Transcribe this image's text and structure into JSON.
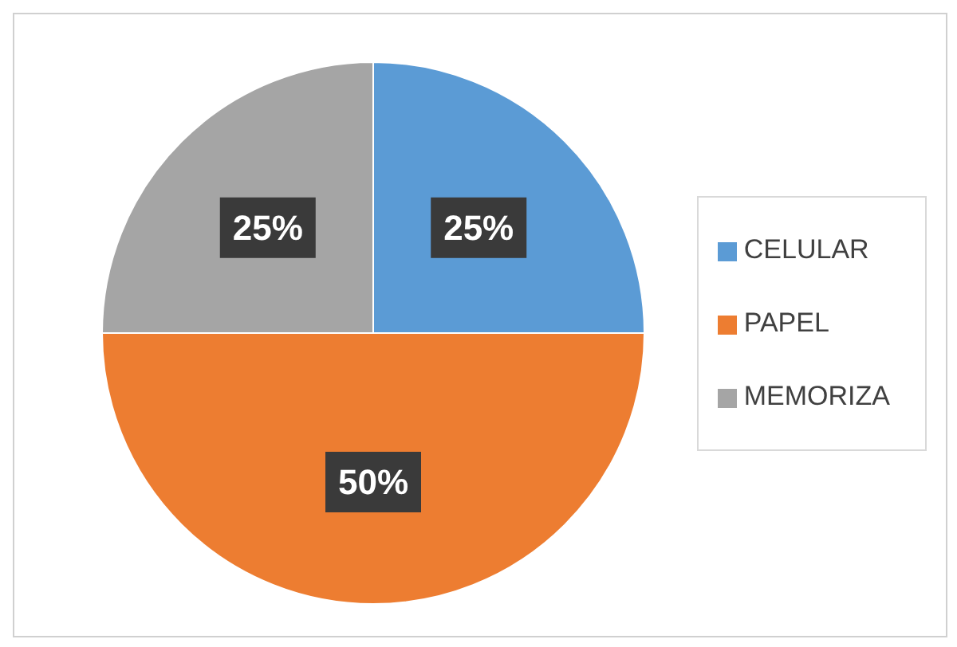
{
  "chart_data": {
    "type": "pie",
    "categories": [
      "CELULAR",
      "PAPEL",
      "MEMORIZA"
    ],
    "values": [
      25,
      50,
      25
    ],
    "colors": [
      "#5b9bd5",
      "#ed7d31",
      "#a5a5a5"
    ],
    "value_labels": [
      "25%",
      "50%",
      "25%"
    ],
    "legend": "right"
  }
}
